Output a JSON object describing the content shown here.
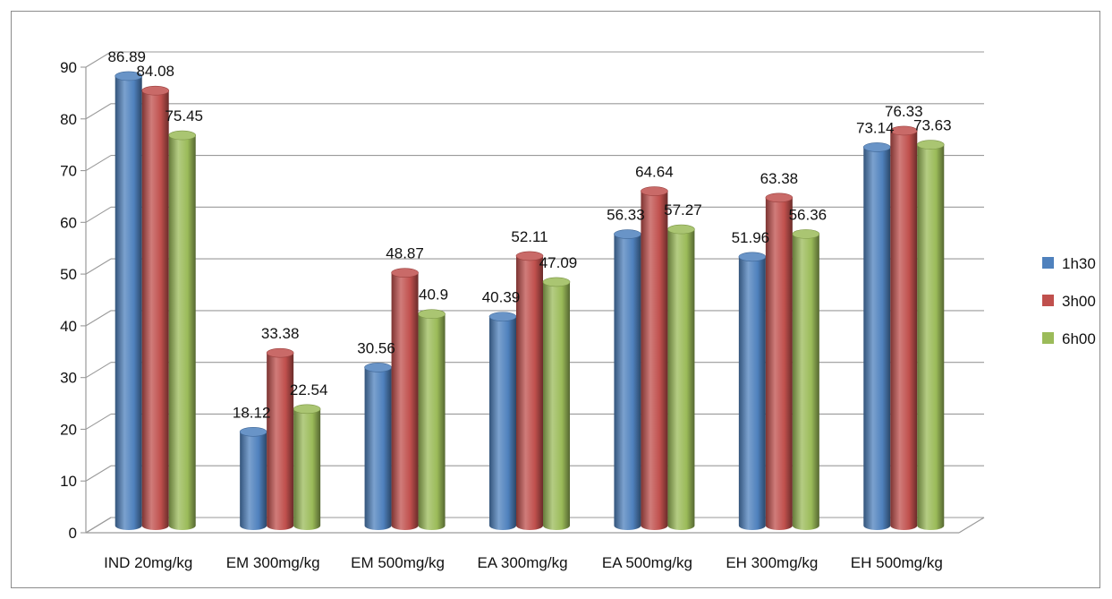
{
  "chart_data": {
    "type": "bar",
    "categories": [
      "IND 20mg/kg",
      "EM 300mg/kg",
      "EM 500mg/kg",
      "EA 300mg/kg",
      "EA 500mg/kg",
      "EH 300mg/kg",
      "EH 500mg/kg"
    ],
    "series": [
      {
        "name": "1h30",
        "color": "#4f81bd",
        "values": [
          86.89,
          18.12,
          30.56,
          40.39,
          56.33,
          51.96,
          73.14
        ]
      },
      {
        "name": "3h00",
        "color": "#c0504d",
        "values": [
          84.08,
          33.38,
          48.87,
          52.11,
          64.64,
          63.38,
          76.33
        ]
      },
      {
        "name": "6h00",
        "color": "#9bbb59",
        "values": [
          75.45,
          22.54,
          40.9,
          47.09,
          57.27,
          56.36,
          73.63
        ]
      }
    ],
    "yticks": [
      "0",
      "10",
      "20",
      "30",
      "40",
      "50",
      "60",
      "70",
      "80",
      "90"
    ],
    "ylim": [
      0,
      90
    ],
    "grid": true,
    "legend_position": "right",
    "style": "3d-cylinder"
  }
}
